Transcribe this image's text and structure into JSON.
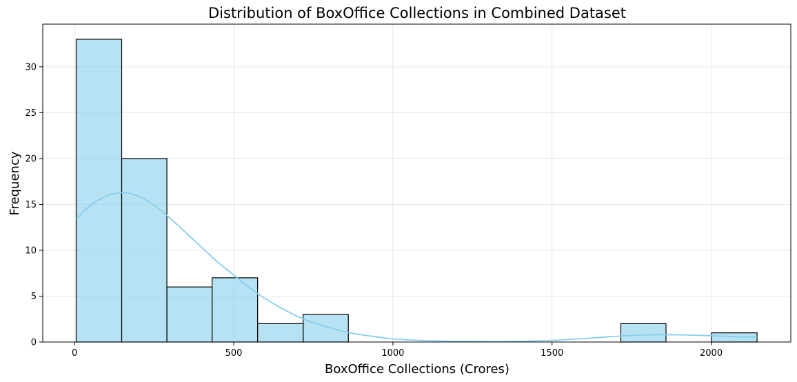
{
  "chart_data": {
    "type": "bar",
    "title": "Distribution of BoxOffice Collections in Combined Dataset",
    "xlabel": "BoxOffice Collections (Crores)",
    "ylabel": "Frequency",
    "xlim": [
      -100,
      2250
    ],
    "ylim": [
      0,
      34.65
    ],
    "xticks": [
      0,
      500,
      1000,
      1500,
      2000
    ],
    "yticks": [
      0,
      5,
      10,
      15,
      20,
      25,
      30
    ],
    "grid": true,
    "bins": [
      {
        "x0": 5,
        "x1": 148,
        "count": 33
      },
      {
        "x0": 148,
        "x1": 290,
        "count": 20
      },
      {
        "x0": 290,
        "x1": 432,
        "count": 6
      },
      {
        "x0": 432,
        "x1": 575,
        "count": 7
      },
      {
        "x0": 575,
        "x1": 718,
        "count": 2
      },
      {
        "x0": 718,
        "x1": 860,
        "count": 3
      },
      {
        "x0": 860,
        "x1": 1003,
        "count": 0
      },
      {
        "x0": 1003,
        "x1": 1146,
        "count": 0
      },
      {
        "x0": 1146,
        "x1": 1288,
        "count": 0
      },
      {
        "x0": 1288,
        "x1": 1430,
        "count": 0
      },
      {
        "x0": 1430,
        "x1": 1573,
        "count": 0
      },
      {
        "x0": 1573,
        "x1": 1716,
        "count": 0
      },
      {
        "x0": 1716,
        "x1": 1858,
        "count": 2
      },
      {
        "x0": 1858,
        "x1": 2001,
        "count": 0
      },
      {
        "x0": 2001,
        "x1": 2144,
        "count": 1
      }
    ],
    "kde": {
      "x": [
        5,
        50,
        100,
        150,
        200,
        250,
        300,
        350,
        400,
        450,
        500,
        550,
        600,
        650,
        700,
        750,
        800,
        850,
        900,
        950,
        1000,
        1100,
        1200,
        1300,
        1400,
        1500,
        1600,
        1700,
        1800,
        1900,
        2000,
        2050,
        2100,
        2144
      ],
      "y": [
        13.4,
        14.9,
        15.9,
        16.3,
        15.9,
        14.9,
        13.5,
        11.9,
        10.3,
        8.7,
        7.3,
        5.9,
        4.7,
        3.7,
        2.8,
        2.1,
        1.6,
        1.1,
        0.8,
        0.55,
        0.35,
        0.15,
        0.08,
        0.06,
        0.08,
        0.18,
        0.38,
        0.62,
        0.78,
        0.78,
        0.68,
        0.61,
        0.55,
        0.5
      ]
    },
    "colors": {
      "bar_fill": "#87ceeb",
      "bar_alpha": 0.6,
      "kde_line": "#87ceeb"
    }
  }
}
